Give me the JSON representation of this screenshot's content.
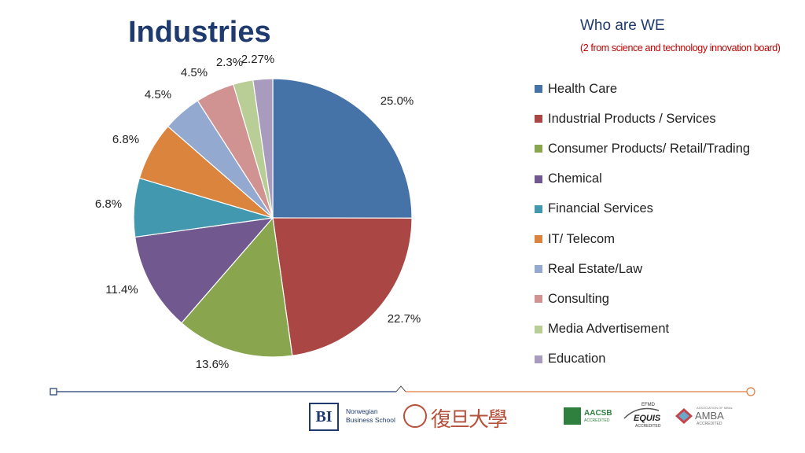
{
  "title": "Industries",
  "sidebar": {
    "heading": "Who are WE",
    "note": "(2 from science and technology innovation board)"
  },
  "chart_data": {
    "type": "pie",
    "title": "Industries",
    "slices": [
      {
        "label": "Health Care",
        "value": 25.0,
        "display": "25.0%",
        "color": "#4572a7"
      },
      {
        "label": "Industrial Products / Services",
        "value": 22.7,
        "display": "22.7%",
        "color": "#aa4643"
      },
      {
        "label": "Consumer Products/ Retail/Trading",
        "value": 13.6,
        "display": "13.6%",
        "color": "#89a54e"
      },
      {
        "label": "Chemical",
        "value": 11.4,
        "display": "11.4%",
        "color": "#71588f"
      },
      {
        "label": "Financial Services",
        "value": 6.8,
        "display": "6.8%",
        "color": "#4198af"
      },
      {
        "label": "IT/ Telecom",
        "value": 6.8,
        "display": "6.8%",
        "color": "#db843d"
      },
      {
        "label": "Real Estate/Law",
        "value": 4.5,
        "display": "4.5%",
        "color": "#93a9cf"
      },
      {
        "label": "Consulting",
        "value": 4.5,
        "display": "4.5%",
        "color": "#d19392"
      },
      {
        "label": "Media Advertisement",
        "value": 2.3,
        "display": "2.3%",
        "color": "#b9cd96"
      },
      {
        "label": "Education",
        "value": 2.27,
        "display": "2.27%",
        "color": "#a99bbd"
      }
    ],
    "legend_position": "right"
  },
  "footer": {
    "bi_mark": "BI",
    "bi_name": "Norwegian Business School",
    "fudan_name": "復旦大學",
    "aacsb": "AACSB",
    "aacsb_sub": "ACCREDITED",
    "efmd": "EFMD",
    "equis": "EQUIS",
    "equis_sub": "ACCREDITED",
    "amba_top": "ASSOCIATION OF MBAs",
    "amba": "AMBA",
    "amba_sub": "ACCREDITED",
    "line_left_color": "#1f3a6e",
    "line_right_color": "#e07a3a"
  }
}
